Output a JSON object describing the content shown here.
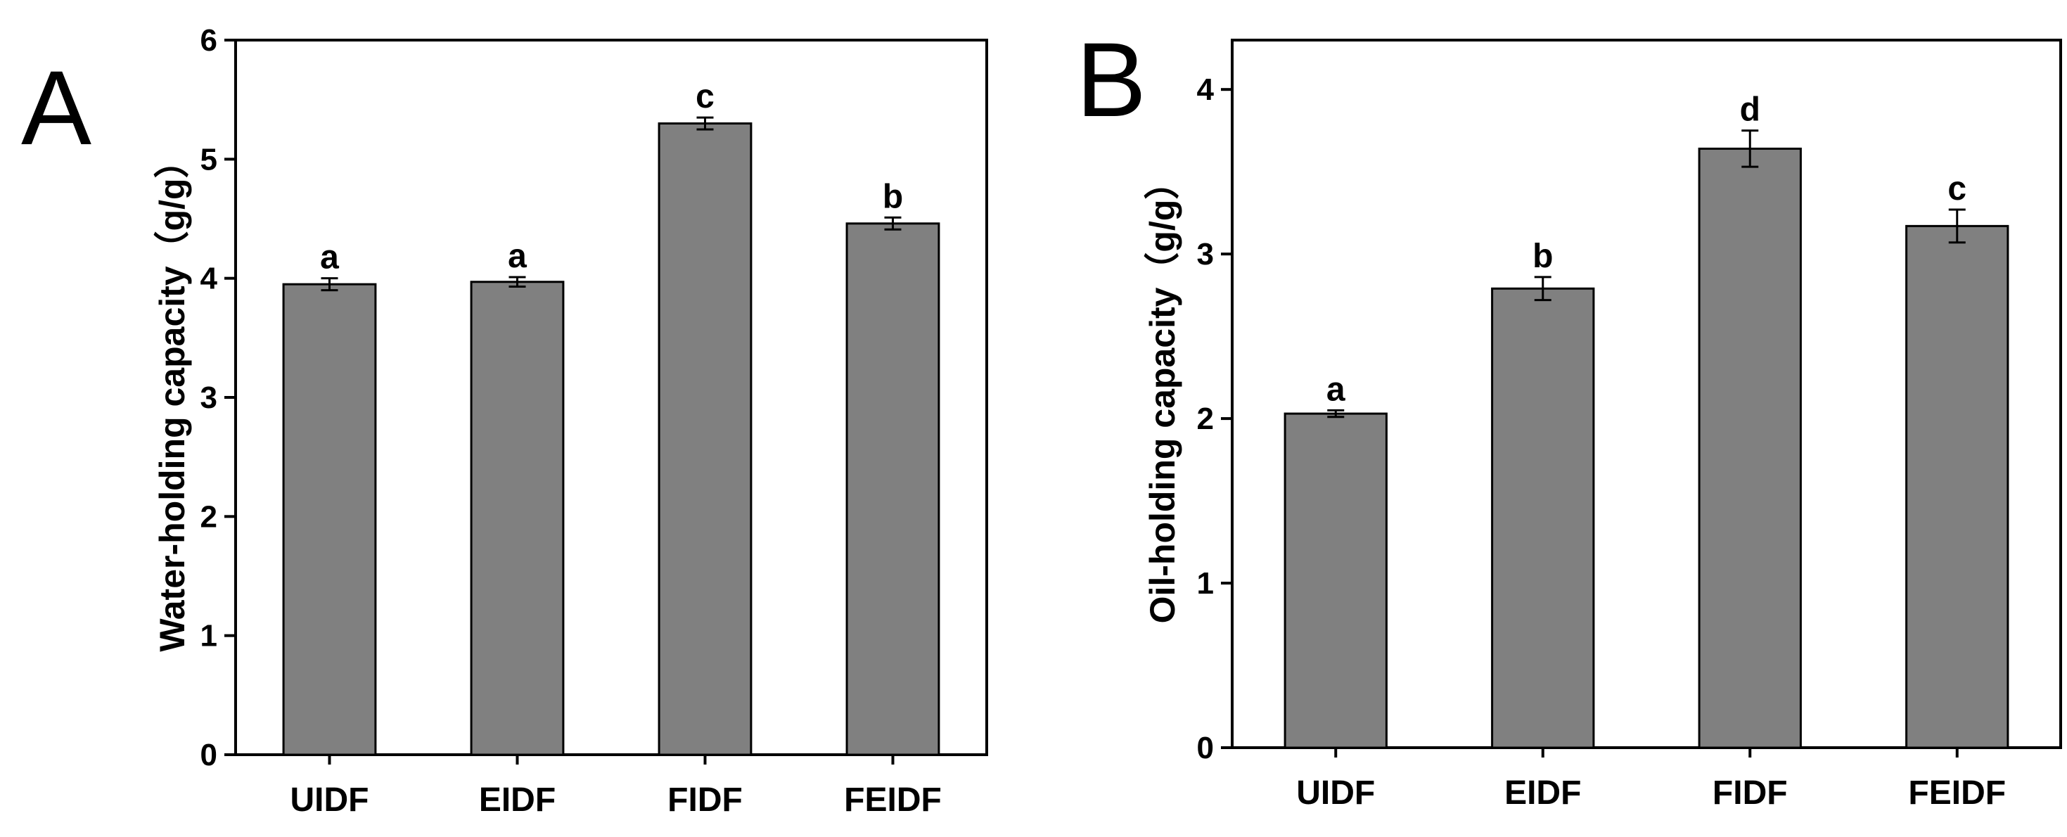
{
  "chart_data": [
    {
      "type": "bar",
      "panel_label": "A",
      "categories": [
        "UIDF",
        "EIDF",
        "FIDF",
        "FEIDF"
      ],
      "values": [
        3.95,
        3.97,
        5.3,
        4.46
      ],
      "errors": [
        0.05,
        0.04,
        0.05,
        0.05
      ],
      "significance": [
        "a",
        "a",
        "c",
        "b"
      ],
      "ylabel": "Water-holding capacity（g/g）",
      "xlabel": "",
      "ylim": [
        0,
        6
      ],
      "yticks": [
        "0",
        "1",
        "2",
        "3",
        "4",
        "5",
        "6"
      ],
      "bar_color": "#808080",
      "grid": false
    },
    {
      "type": "bar",
      "panel_label": "B",
      "categories": [
        "UIDF",
        "EIDF",
        "FIDF",
        "FEIDF"
      ],
      "values": [
        2.03,
        2.79,
        3.64,
        3.17
      ],
      "errors": [
        0.02,
        0.07,
        0.11,
        0.1
      ],
      "significance": [
        "a",
        "b",
        "d",
        "c"
      ],
      "ylabel": "Oil-holding capacity（g/g）",
      "xlabel": "",
      "ylim": [
        0,
        4.3
      ],
      "yticks": [
        "0",
        "1",
        "2",
        "3",
        "4"
      ],
      "bar_color": "#808080",
      "grid": false
    }
  ]
}
